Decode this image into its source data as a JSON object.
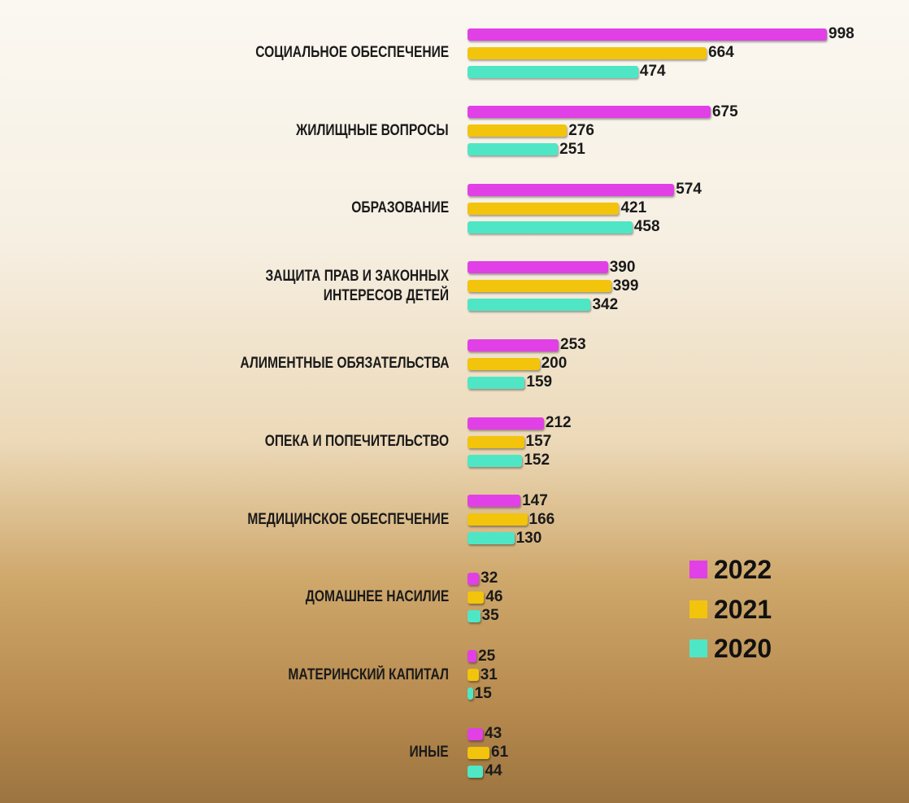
{
  "chart_data": {
    "type": "bar",
    "orientation": "horizontal",
    "categories": [
      "СОЦИАЛЬНОЕ ОБЕСПЕЧЕНИЕ",
      "ЖИЛИЩНЫЕ ВОПРОСЫ",
      "ОБРАЗОВАНИЕ",
      "ЗАЩИТА ПРАВ И ЗАКОННЫХ\nИНТЕРЕСОВ ДЕТЕЙ",
      "АЛИМЕНТНЫЕ ОБЯЗАТЕЛЬСТВА",
      "ОПЕКА И ПОПЕЧИТЕЛЬСТВО",
      "МЕДИЦИНСКОЕ ОБЕСПЕЧЕНИЕ",
      "ДОМАШНЕЕ НАСИЛИЕ",
      "МАТЕРИНСКИЙ КАПИТАЛ",
      "ИНЫЕ"
    ],
    "series": [
      {
        "name": "2022",
        "color": "#e040e6",
        "values": [
          998,
          675,
          574,
          390,
          253,
          212,
          147,
          32,
          25,
          43
        ]
      },
      {
        "name": "2021",
        "color": "#f2c40c",
        "values": [
          664,
          276,
          421,
          399,
          200,
          157,
          166,
          46,
          31,
          61
        ]
      },
      {
        "name": "2020",
        "color": "#4fe6c6",
        "values": [
          474,
          251,
          458,
          342,
          159,
          152,
          130,
          35,
          15,
          44
        ]
      }
    ],
    "legend": "bottom-right"
  }
}
